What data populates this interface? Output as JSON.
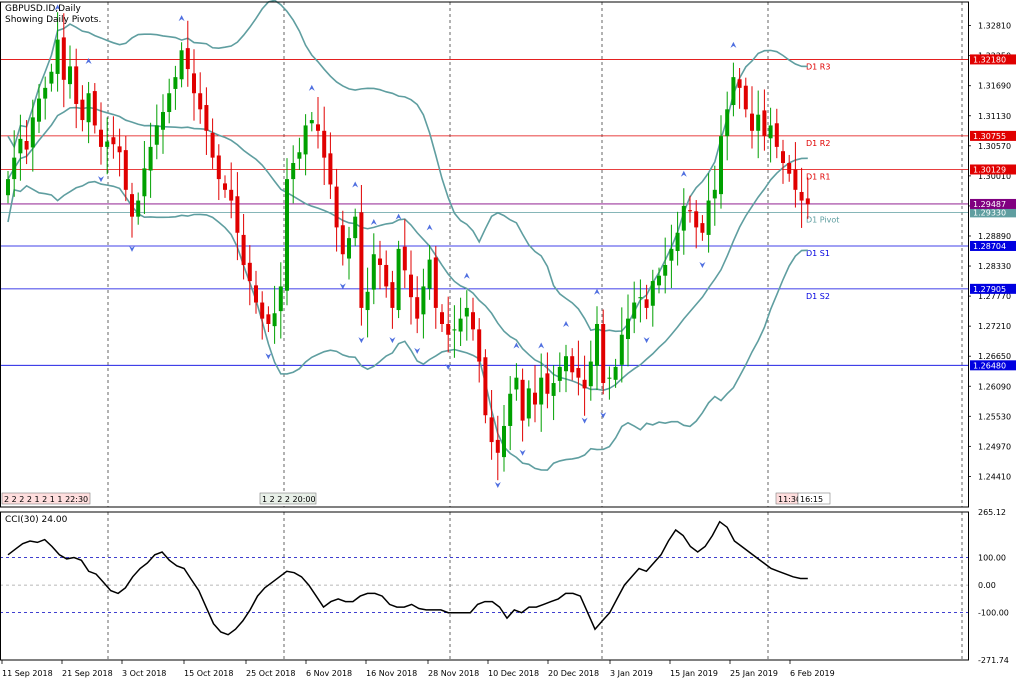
{
  "header": {
    "symbol_line": "GBPUSD.ID,Daily",
    "pivot_line": "Showing Daily Pivots."
  },
  "indicator": {
    "label": "CCI(30) 24.00"
  },
  "time_labels": {
    "left": "2 2 2 2 1 2 1 1 22:30",
    "middle": "1 2 2 2 20:00",
    "right": "11:30",
    "right_box": "16:15"
  },
  "colors": {
    "bull": "#00a000",
    "bear": "#e00000",
    "bands": "#5f9ea0",
    "resistance": "#e00000",
    "support": "#0000e0",
    "pivot": "#5f9ea0",
    "arrow": "#4f6fe0",
    "cci": "#000000",
    "grid": "#000000"
  },
  "chart_data": [
    {
      "type": "candlestick",
      "title": "GBPUSD.ID,Daily",
      "x_tick_labels": [
        "11 Sep 2018",
        "21 Sep 2018",
        "3 Oct 2018",
        "15 Oct 2018",
        "25 Oct 2018",
        "6 Nov 2018",
        "16 Nov 2018",
        "28 Nov 2018",
        "10 Dec 2018",
        "20 Dec 2018",
        "3 Jan 2019",
        "15 Jan 2019",
        "25 Jan 2019",
        "6 Feb 2019"
      ],
      "y_tick_labels": [
        "1.32810",
        "1.32250",
        "1.31690",
        "1.31130",
        "1.30570",
        "1.30010",
        "1.29450",
        "1.28890",
        "1.28330",
        "1.27770",
        "1.27210",
        "1.26650",
        "1.26090",
        "1.25530",
        "1.24970",
        "1.24410"
      ],
      "ylim": [
        1.2384,
        1.3325
      ],
      "grid": "vertical-dashed",
      "pivot_levels": [
        {
          "name": "D1 R3",
          "value": 1.3218,
          "label": "1.32180",
          "kind": "resistance"
        },
        {
          "name": "D1 R2",
          "value": 1.30755,
          "label": "1.30755",
          "kind": "resistance"
        },
        {
          "name": "D1 R1",
          "value": 1.30129,
          "label": "1.30129",
          "kind": "resistance"
        },
        {
          "name": "D1 Pivot",
          "value": 1.2933,
          "label": "1.29330",
          "kind": "pivot"
        },
        {
          "name": "D1 S1",
          "value": 1.28704,
          "label": "1.28704",
          "kind": "support"
        },
        {
          "name": "D1 S2",
          "value": 1.27905,
          "label": "1.27905",
          "kind": "support"
        },
        {
          "name": "",
          "value": 1.2648,
          "label": "1.26480",
          "kind": "support"
        }
      ],
      "current_price": {
        "value": 1.29487,
        "label": "1.29487"
      },
      "indicators": [
        "Bollinger Bands",
        "Fractals"
      ],
      "closes": [
        1.2995,
        1.3035,
        1.307,
        1.305,
        1.311,
        1.3145,
        1.3165,
        1.3195,
        1.3255,
        1.318,
        1.3205,
        1.3135,
        1.3105,
        1.3155,
        1.3095,
        1.3055,
        1.3065,
        1.306,
        1.3045,
        1.2975,
        1.2925,
        1.2955,
        1.3015,
        1.3055,
        1.3095,
        1.312,
        1.3155,
        1.3185,
        1.3235,
        1.32,
        1.3155,
        1.3125,
        1.3085,
        1.3035,
        1.2995,
        1.2975,
        1.2955,
        1.2895,
        1.2835,
        1.2805,
        1.2765,
        1.2735,
        1.2725,
        1.2745,
        1.2795,
        1.2995,
        1.3025,
        1.3045,
        1.3095,
        1.3105,
        1.3085,
        1.3035,
        1.2985,
        1.2905,
        1.2855,
        1.2885,
        1.2925,
        1.2755,
        1.2785,
        1.2855,
        1.2835,
        1.2795,
        1.2755,
        1.2865,
        1.2825,
        1.2775,
        1.2735,
        1.2795,
        1.2845,
        1.2755,
        1.2725,
        1.2705,
        1.2715,
        1.2735,
        1.2755,
        1.2715,
        1.2655,
        1.2555,
        1.2505,
        1.2485,
        1.2535,
        1.2595,
        1.2625,
        1.2545,
        1.2605,
        1.2575,
        1.2625,
        1.2595,
        1.2615,
        1.2645,
        1.2665,
        1.2635,
        1.2625,
        1.2605,
        1.2655,
        1.2725,
        1.2615,
        1.2625,
        1.2645,
        1.2705,
        1.2735,
        1.2765,
        1.2775,
        1.2755,
        1.2805,
        1.2815,
        1.2835,
        1.2865,
        1.2895,
        1.2945,
        1.2935,
        1.2905,
        1.2895,
        1.2955,
        1.2975,
        1.3075,
        1.3125,
        1.3185,
        1.3165,
        1.3125,
        1.3085,
        1.3115,
        1.3075,
        1.3095,
        1.3055,
        1.3025,
        1.3005,
        1.2975,
        1.2955,
        1.2948
      ]
    },
    {
      "type": "line",
      "title": "CCI(30) 24.00",
      "y_tick_labels": [
        "265.12",
        "100.00",
        "0.00",
        "-100.00",
        "-271.74"
      ],
      "ylim": [
        -271.74,
        265.12
      ],
      "levels": [
        100,
        0,
        -100
      ],
      "current_value": 24.0,
      "values": [
        110,
        130,
        150,
        160,
        155,
        165,
        140,
        110,
        95,
        100,
        90,
        50,
        40,
        10,
        -20,
        -30,
        -10,
        30,
        60,
        80,
        110,
        120,
        90,
        70,
        60,
        20,
        -20,
        -80,
        -140,
        -170,
        -180,
        -160,
        -130,
        -90,
        -40,
        -10,
        10,
        30,
        50,
        45,
        30,
        0,
        -40,
        -80,
        -60,
        -50,
        -60,
        -60,
        -40,
        -30,
        -30,
        -40,
        -70,
        -80,
        -80,
        -70,
        -85,
        -90,
        -90,
        -90,
        -100,
        -100,
        -100,
        -100,
        -70,
        -60,
        -60,
        -80,
        -120,
        -90,
        -100,
        -80,
        -80,
        -70,
        -60,
        -50,
        -30,
        -30,
        -40,
        -100,
        -160,
        -130,
        -100,
        -50,
        0,
        30,
        60,
        50,
        80,
        110,
        160,
        200,
        180,
        140,
        120,
        140,
        180,
        230,
        210,
        160,
        140,
        120,
        100,
        80,
        60,
        50,
        40,
        30,
        24,
        24
      ]
    }
  ]
}
